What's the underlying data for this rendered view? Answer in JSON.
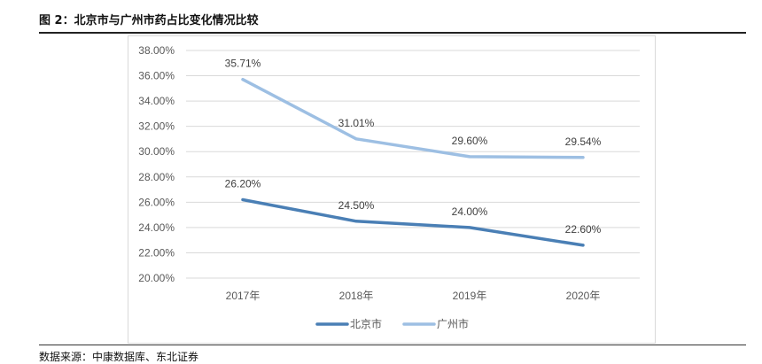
{
  "figure": {
    "title": "图 2：北京市与广州市药占比变化情况比较",
    "source": "数据来源：中康数据库、东北证券"
  },
  "colors": {
    "beijing": "#4a7fb5",
    "guangzhou": "#9dbfe3",
    "grid": "#d9d9d9",
    "tick": "#595959"
  },
  "chart_data": {
    "type": "line",
    "categories": [
      "2017年",
      "2018年",
      "2019年",
      "2020年"
    ],
    "series": [
      {
        "name": "北京市",
        "values": [
          26.2,
          24.5,
          24.0,
          22.6
        ],
        "labels": [
          "26.20%",
          "24.50%",
          "24.00%",
          "22.60%"
        ]
      },
      {
        "name": "广州市",
        "values": [
          35.71,
          31.01,
          29.6,
          29.54
        ],
        "labels": [
          "35.71%",
          "31.01%",
          "29.60%",
          "29.54%"
        ]
      }
    ],
    "ylim": [
      20,
      38
    ],
    "ytick_step": 2,
    "ytick_labels": [
      "20.00%",
      "22.00%",
      "24.00%",
      "26.00%",
      "28.00%",
      "30.00%",
      "32.00%",
      "34.00%",
      "36.00%",
      "38.00%"
    ],
    "grid": true,
    "legend_position": "bottom"
  }
}
